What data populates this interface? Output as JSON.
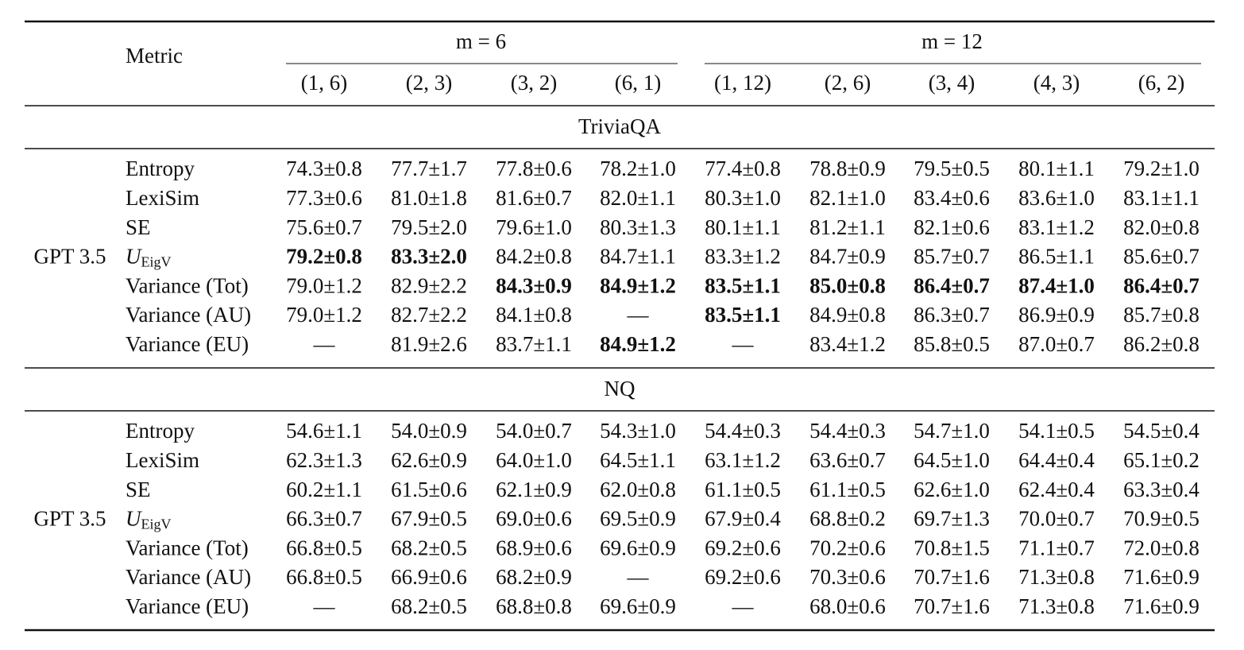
{
  "header": {
    "metric": "Metric",
    "groups": [
      {
        "label": "m = 6",
        "columns": [
          "(1, 6)",
          "(2, 3)",
          "(3, 2)",
          "(6, 1)"
        ]
      },
      {
        "label": "m = 12",
        "columns": [
          "(1, 12)",
          "(2, 6)",
          "(3, 4)",
          "(4, 3)",
          "(6, 2)"
        ]
      }
    ]
  },
  "sections": [
    {
      "title": "TriviaQA",
      "model": "GPT 3.5",
      "rows": [
        {
          "metric": "Entropy",
          "cells": [
            "74.3±0.8",
            "77.7±1.7",
            "77.8±0.6",
            "78.2±1.0",
            "77.4±0.8",
            "78.8±0.9",
            "79.5±0.5",
            "80.1±1.1",
            "79.2±1.0"
          ]
        },
        {
          "metric": "LexiSim",
          "cells": [
            "77.3±0.6",
            "81.0±1.8",
            "81.6±0.7",
            "82.0±1.1",
            "80.3±1.0",
            "82.1±1.0",
            "83.4±0.6",
            "83.6±1.0",
            "83.1±1.1"
          ]
        },
        {
          "metric": "SE",
          "cells": [
            "75.6±0.7",
            "79.5±2.0",
            "79.6±1.0",
            "80.3±1.3",
            "80.1±1.1",
            "81.2±1.1",
            "82.1±0.6",
            "83.1±1.2",
            "82.0±0.8"
          ]
        },
        {
          "metric": {
            "symbol": "U",
            "subscript": "EigV"
          },
          "cells": [
            "79.2±0.8",
            "83.3±2.0",
            "84.2±0.8",
            "84.7±1.1",
            "83.3±1.2",
            "84.7±0.9",
            "85.7±0.7",
            "86.5±1.1",
            "85.6±0.7"
          ],
          "bold": [
            0,
            1
          ]
        },
        {
          "metric": "Variance (Tot)",
          "cells": [
            "79.0±1.2",
            "82.9±2.2",
            "84.3±0.9",
            "84.9±1.2",
            "83.5±1.1",
            "85.0±0.8",
            "86.4±0.7",
            "87.4±1.0",
            "86.4±0.7"
          ],
          "bold": [
            2,
            3,
            4,
            5,
            6,
            7,
            8
          ]
        },
        {
          "metric": "Variance (AU)",
          "cells": [
            "79.0±1.2",
            "82.7±2.2",
            "84.1±0.8",
            "—",
            "83.5±1.1",
            "84.9±0.8",
            "86.3±0.7",
            "86.9±0.9",
            "85.7±0.8"
          ],
          "bold": [
            4
          ]
        },
        {
          "metric": "Variance (EU)",
          "cells": [
            "—",
            "81.9±2.6",
            "83.7±1.1",
            "84.9±1.2",
            "—",
            "83.4±1.2",
            "85.8±0.5",
            "87.0±0.7",
            "86.2±0.8"
          ],
          "bold": [
            3
          ]
        }
      ]
    },
    {
      "title": "NQ",
      "model": "GPT 3.5",
      "rows": [
        {
          "metric": "Entropy",
          "cells": [
            "54.6±1.1",
            "54.0±0.9",
            "54.0±0.7",
            "54.3±1.0",
            "54.4±0.3",
            "54.4±0.3",
            "54.7±1.0",
            "54.1±0.5",
            "54.5±0.4"
          ]
        },
        {
          "metric": "LexiSim",
          "cells": [
            "62.3±1.3",
            "62.6±0.9",
            "64.0±1.0",
            "64.5±1.1",
            "63.1±1.2",
            "63.6±0.7",
            "64.5±1.0",
            "64.4±0.4",
            "65.1±0.2"
          ]
        },
        {
          "metric": "SE",
          "cells": [
            "60.2±1.1",
            "61.5±0.6",
            "62.1±0.9",
            "62.0±0.8",
            "61.1±0.5",
            "61.1±0.5",
            "62.6±1.0",
            "62.4±0.4",
            "63.3±0.4"
          ]
        },
        {
          "metric": {
            "symbol": "U",
            "subscript": "EigV"
          },
          "cells": [
            "66.3±0.7",
            "67.9±0.5",
            "69.0±0.6",
            "69.5±0.9",
            "67.9±0.4",
            "68.8±0.2",
            "69.7±1.3",
            "70.0±0.7",
            "70.9±0.5"
          ]
        },
        {
          "metric": "Variance (Tot)",
          "cells": [
            "66.8±0.5",
            "68.2±0.5",
            "68.9±0.6",
            "69.6±0.9",
            "69.2±0.6",
            "70.2±0.6",
            "70.8±1.5",
            "71.1±0.7",
            "72.0±0.8"
          ]
        },
        {
          "metric": "Variance (AU)",
          "cells": [
            "66.8±0.5",
            "66.9±0.6",
            "68.2±0.9",
            "—",
            "69.2±0.6",
            "70.3±0.6",
            "70.7±1.6",
            "71.3±0.8",
            "71.6±0.9"
          ]
        },
        {
          "metric": "Variance (EU)",
          "cells": [
            "—",
            "68.2±0.5",
            "68.8±0.8",
            "69.6±0.9",
            "—",
            "68.0±0.6",
            "70.7±1.6",
            "71.3±0.8",
            "71.6±0.9"
          ]
        }
      ]
    }
  ]
}
